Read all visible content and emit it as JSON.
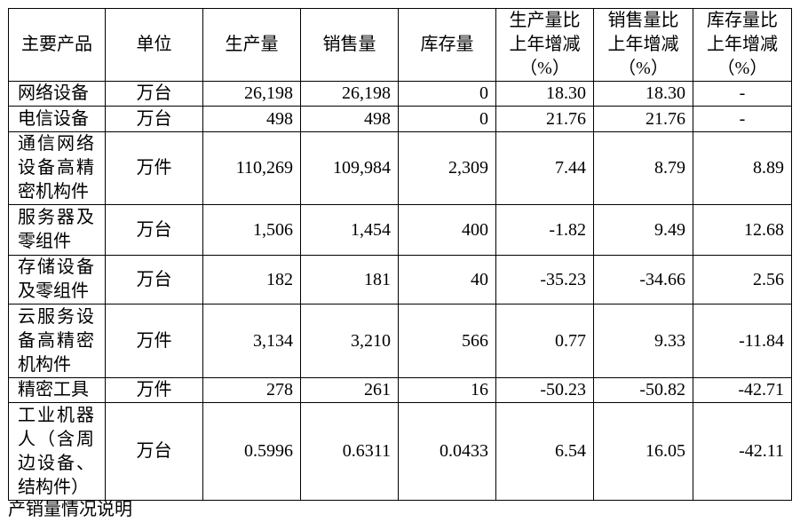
{
  "table": {
    "header": [
      "主要产品",
      "单位",
      "生产量",
      "销售量",
      "库存量",
      "生产量比上年增减（%）",
      "销售量比上年增减（%）",
      "库存量比上年增减（%）"
    ],
    "rows": [
      [
        "网络设备",
        "万台",
        "26,198",
        "26,198",
        "0",
        "18.30",
        "18.30",
        "-"
      ],
      [
        "电信设备",
        "万台",
        "498",
        "498",
        "0",
        "21.76",
        "21.76",
        "-"
      ],
      [
        "通信网络设备高精密机构件",
        "万件",
        "110,269",
        "109,984",
        "2,309",
        "7.44",
        "8.79",
        "8.89"
      ],
      [
        "服务器及零组件",
        "万台",
        "1,506",
        "1,454",
        "400",
        "-1.82",
        "9.49",
        "12.68"
      ],
      [
        "存储设备及零组件",
        "万台",
        "182",
        "181",
        "40",
        "-35.23",
        "-34.66",
        "2.56"
      ],
      [
        "云服务设备高精密机构件",
        "万件",
        "3,134",
        "3,210",
        "566",
        "0.77",
        "9.33",
        "-11.84"
      ],
      [
        "精密工具",
        "万件",
        "278",
        "261",
        "16",
        "-50.23",
        "-50.82",
        "-42.71"
      ],
      [
        "工业机器人（含周边设备、结构件）",
        "万台",
        "0.5996",
        "0.6311",
        "0.0433",
        "6.54",
        "16.05",
        "-42.11"
      ]
    ]
  },
  "note": "产销量情况说明"
}
